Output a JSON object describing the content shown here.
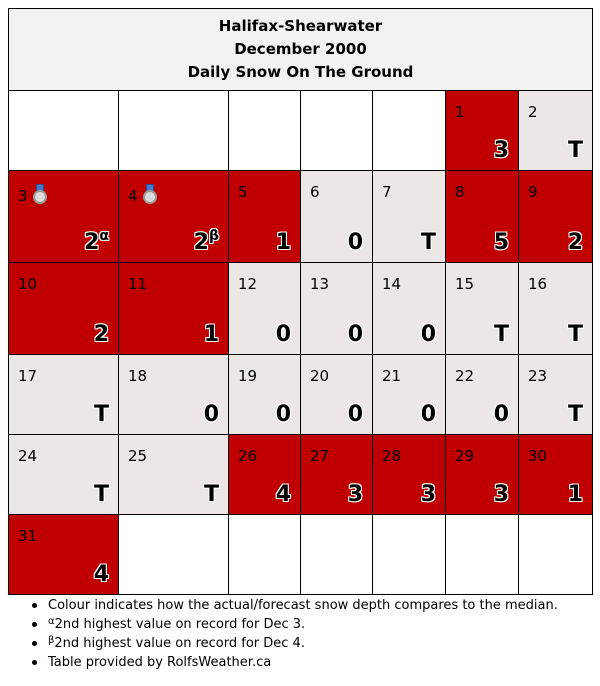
{
  "title": {
    "line1": "Halifax-Shearwater",
    "line2": "December 2000",
    "line3": "Daily Snow On The Ground"
  },
  "colors": {
    "above_median": "#c00000",
    "at_or_below_median": "#ece6e6",
    "empty": "#ffffff",
    "header_bg": "#f2f2f2"
  },
  "chart_data": {
    "type": "table",
    "title": "Halifax-Shearwater December 2000 Daily Snow On The Ground",
    "first_weekday_index": 5,
    "days": [
      {
        "day": 1,
        "value": "3",
        "color": "red"
      },
      {
        "day": 2,
        "value": "T",
        "color": "light"
      },
      {
        "day": 3,
        "value": "2",
        "sup": "α",
        "color": "red",
        "medal": "silver-medal-icon"
      },
      {
        "day": 4,
        "value": "2",
        "sup": "β",
        "color": "red",
        "medal": "silver-medal-icon"
      },
      {
        "day": 5,
        "value": "1",
        "color": "red"
      },
      {
        "day": 6,
        "value": "0",
        "color": "light"
      },
      {
        "day": 7,
        "value": "T",
        "color": "light"
      },
      {
        "day": 8,
        "value": "5",
        "color": "red"
      },
      {
        "day": 9,
        "value": "2",
        "color": "red"
      },
      {
        "day": 10,
        "value": "2",
        "color": "red"
      },
      {
        "day": 11,
        "value": "1",
        "color": "red"
      },
      {
        "day": 12,
        "value": "0",
        "color": "light"
      },
      {
        "day": 13,
        "value": "0",
        "color": "light"
      },
      {
        "day": 14,
        "value": "0",
        "color": "light"
      },
      {
        "day": 15,
        "value": "T",
        "color": "light"
      },
      {
        "day": 16,
        "value": "T",
        "color": "light"
      },
      {
        "day": 17,
        "value": "T",
        "color": "light"
      },
      {
        "day": 18,
        "value": "0",
        "color": "light"
      },
      {
        "day": 19,
        "value": "0",
        "color": "light"
      },
      {
        "day": 20,
        "value": "0",
        "color": "light"
      },
      {
        "day": 21,
        "value": "0",
        "color": "light"
      },
      {
        "day": 22,
        "value": "0",
        "color": "light"
      },
      {
        "day": 23,
        "value": "T",
        "color": "light"
      },
      {
        "day": 24,
        "value": "T",
        "color": "light"
      },
      {
        "day": 25,
        "value": "T",
        "color": "light"
      },
      {
        "day": 26,
        "value": "4",
        "color": "red"
      },
      {
        "day": 27,
        "value": "3",
        "color": "red"
      },
      {
        "day": 28,
        "value": "3",
        "color": "red"
      },
      {
        "day": 29,
        "value": "3",
        "color": "red"
      },
      {
        "day": 30,
        "value": "1",
        "color": "red"
      },
      {
        "day": 31,
        "value": "4",
        "color": "red"
      }
    ]
  },
  "notes": {
    "colour": "Colour indicates how the actual/forecast snow depth compares to the median.",
    "alpha_mark": "α",
    "alpha_text": "2nd highest value on record for Dec 3.",
    "beta_mark": "β",
    "beta_text": "2nd highest value on record for Dec 4.",
    "credit": "Table provided by RolfsWeather.ca"
  }
}
